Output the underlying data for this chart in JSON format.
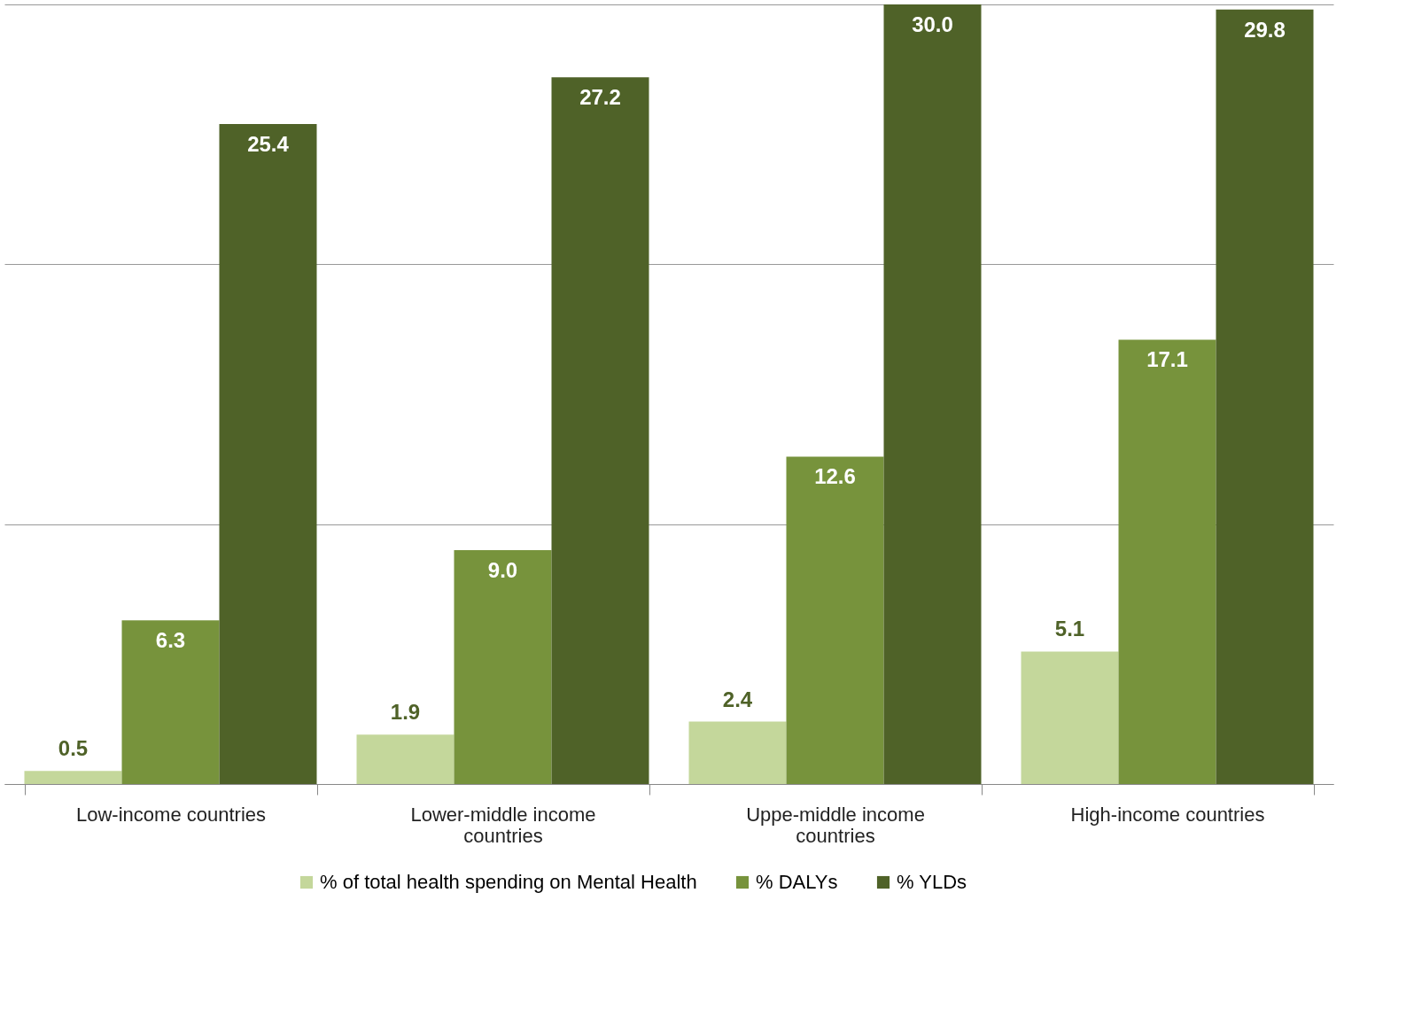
{
  "chart_data": {
    "type": "bar",
    "categories": [
      "Low-income countries",
      "Lower-middle income countries",
      "Uppe-middle income countries",
      "High-income countries"
    ],
    "series": [
      {
        "name": "% of total health spending on Mental Health",
        "color": "#c4d79b",
        "values": [
          0.5,
          1.9,
          2.4,
          5.1
        ],
        "value_labels": [
          "0.5",
          "1.9",
          "2.4",
          "5.1"
        ]
      },
      {
        "name": "% DALYs",
        "color": "#77933c",
        "values": [
          6.3,
          9.0,
          12.6,
          17.1
        ],
        "value_labels": [
          "6.3",
          "9.0",
          "12.6",
          "17.1"
        ]
      },
      {
        "name": "% YLDs",
        "color": "#4f6228",
        "values": [
          25.4,
          27.2,
          30.0,
          29.8
        ],
        "value_labels": [
          "25.4",
          "27.2",
          "30.0",
          "29.8"
        ]
      }
    ],
    "ylim": [
      0,
      30
    ],
    "yticks": [
      {
        "value": 0,
        "label": null
      },
      {
        "value": 10,
        "label": null
      },
      {
        "value": 20,
        "label": null
      },
      {
        "value": 30,
        "label": null
      }
    ],
    "grid": "y",
    "legend": "bottom",
    "tick_labels": "x"
  }
}
